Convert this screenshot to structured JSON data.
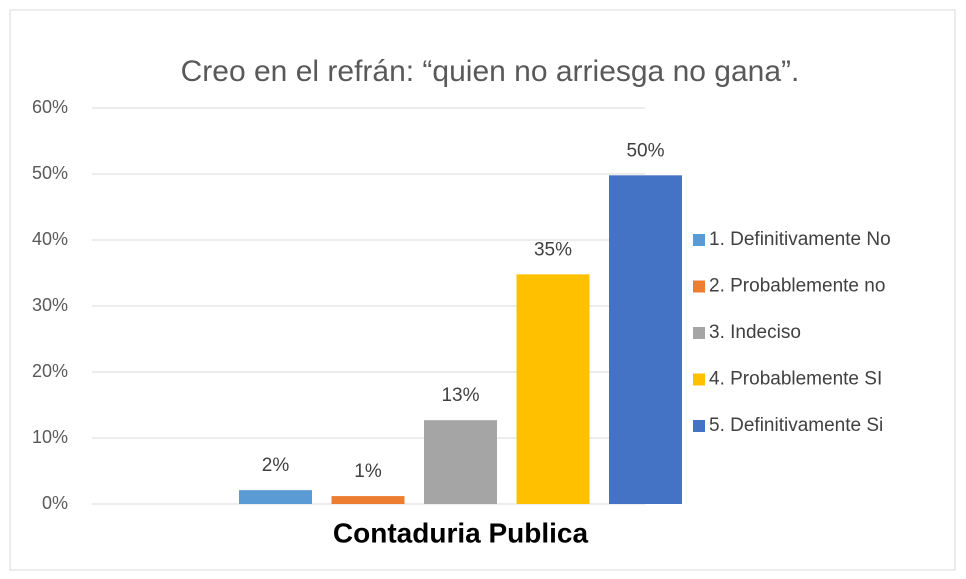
{
  "chart_data": {
    "type": "bar",
    "title": "Creo en el refrán: “quien no arriesga no gana”.",
    "categories": [
      "Contaduria Publica"
    ],
    "series": [
      {
        "name": "1. Definitivamente No",
        "color": "#5b9bd5",
        "values": [
          2.1
        ],
        "value_labels": [
          "2%"
        ]
      },
      {
        "name": "2. Probablemente no",
        "color": "#ed7d31",
        "values": [
          1.2
        ],
        "value_labels": [
          "1%"
        ]
      },
      {
        "name": "3. Indeciso",
        "color": "#a5a5a5",
        "values": [
          12.7
        ],
        "value_labels": [
          "13%"
        ]
      },
      {
        "name": "4. Probablemente SI",
        "color": "#ffc000",
        "values": [
          34.8
        ],
        "value_labels": [
          "35%"
        ]
      },
      {
        "name": "5. Definitivamente Si",
        "color": "#4472c4",
        "values": [
          49.8
        ],
        "value_labels": [
          "50%"
        ]
      }
    ],
    "ylim": [
      0,
      60
    ],
    "yticks": [
      {
        "value": 0,
        "label": "0%"
      },
      {
        "value": 10,
        "label": "10%"
      },
      {
        "value": 20,
        "label": "20%"
      },
      {
        "value": 30,
        "label": "30%"
      },
      {
        "value": 40,
        "label": "40%"
      },
      {
        "value": 50,
        "label": "50%"
      },
      {
        "value": 60,
        "label": "60%"
      }
    ],
    "grid": true,
    "legend": "right"
  }
}
